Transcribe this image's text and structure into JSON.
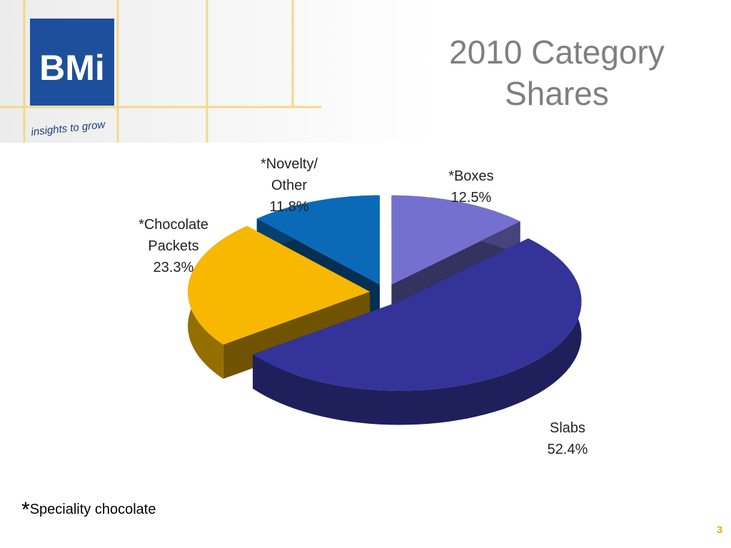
{
  "logo": {
    "text": "BMi",
    "tagline": "insights to grow"
  },
  "chart_data": {
    "type": "pie3d",
    "title": "2010 Category Shares",
    "categories": [
      "*Boxes",
      "Slabs",
      "*Chocolate Packets",
      "*Novelty/ Other"
    ],
    "values": [
      12.5,
      52.4,
      23.3,
      11.8
    ],
    "value_labels": [
      "12.5%",
      "52.4%",
      "23.3%",
      "11.8%"
    ],
    "colors": [
      "#7470d0",
      "#333399",
      "#f8b800",
      "#0a6ab8"
    ]
  },
  "footnote": {
    "mark": "*",
    "text": "Speciality chocolate"
  },
  "page_number": "3"
}
